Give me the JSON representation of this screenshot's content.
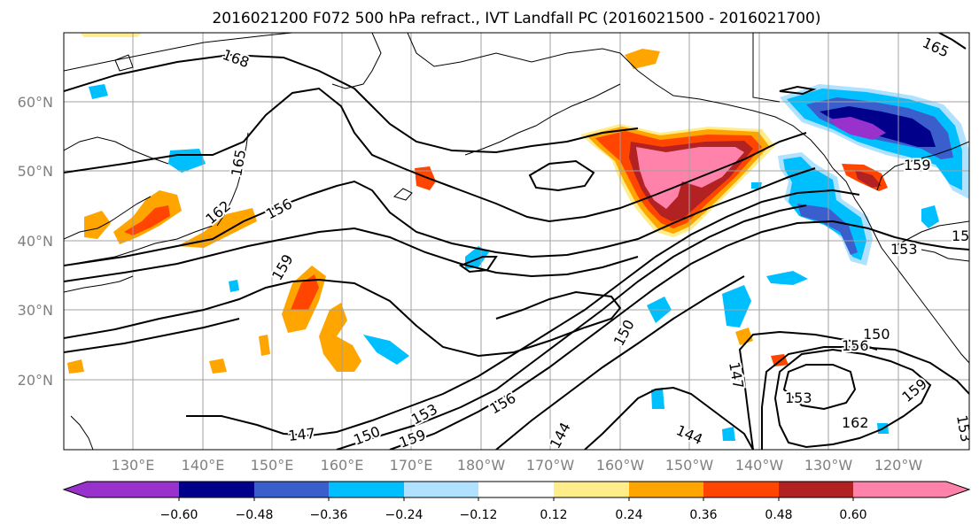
{
  "title": "2016021200 F072 500 hPa refract., IVT Landfall PC (2016021500 - 2016021700)",
  "lat_labels": [
    "60°N",
    "50°N",
    "40°N",
    "30°N",
    "20°N"
  ],
  "lon_labels": [
    "130°E",
    "140°E",
    "150°E",
    "160°E",
    "170°E",
    "180°W",
    "170°W",
    "160°W",
    "150°W",
    "140°W",
    "130°W",
    "120°W"
  ],
  "contour_labels": [
    "168",
    "165",
    "162",
    "156",
    "159",
    "150",
    "147",
    "150",
    "153",
    "156",
    "159",
    "144",
    "144",
    "147",
    "150",
    "153",
    "153",
    "156",
    "159",
    "159",
    "162",
    "165",
    "153",
    "15"
  ],
  "colorbar": {
    "ticks": [
      "−0.60",
      "−0.48",
      "−0.36",
      "−0.24",
      "−0.12",
      "0.12",
      "0.24",
      "0.36",
      "0.48",
      "0.60"
    ],
    "colors": [
      "#9932cc",
      "#00008b",
      "#3a5fcd",
      "#00bfff",
      "#b0e2ff",
      "#ffffff",
      "#ffec8b",
      "#ffa500",
      "#ff4500",
      "#b22222",
      "#ff82ab"
    ]
  },
  "colors": {
    "grid": "#a0a0a0",
    "coast": "#000000",
    "contour": "#000000"
  }
}
